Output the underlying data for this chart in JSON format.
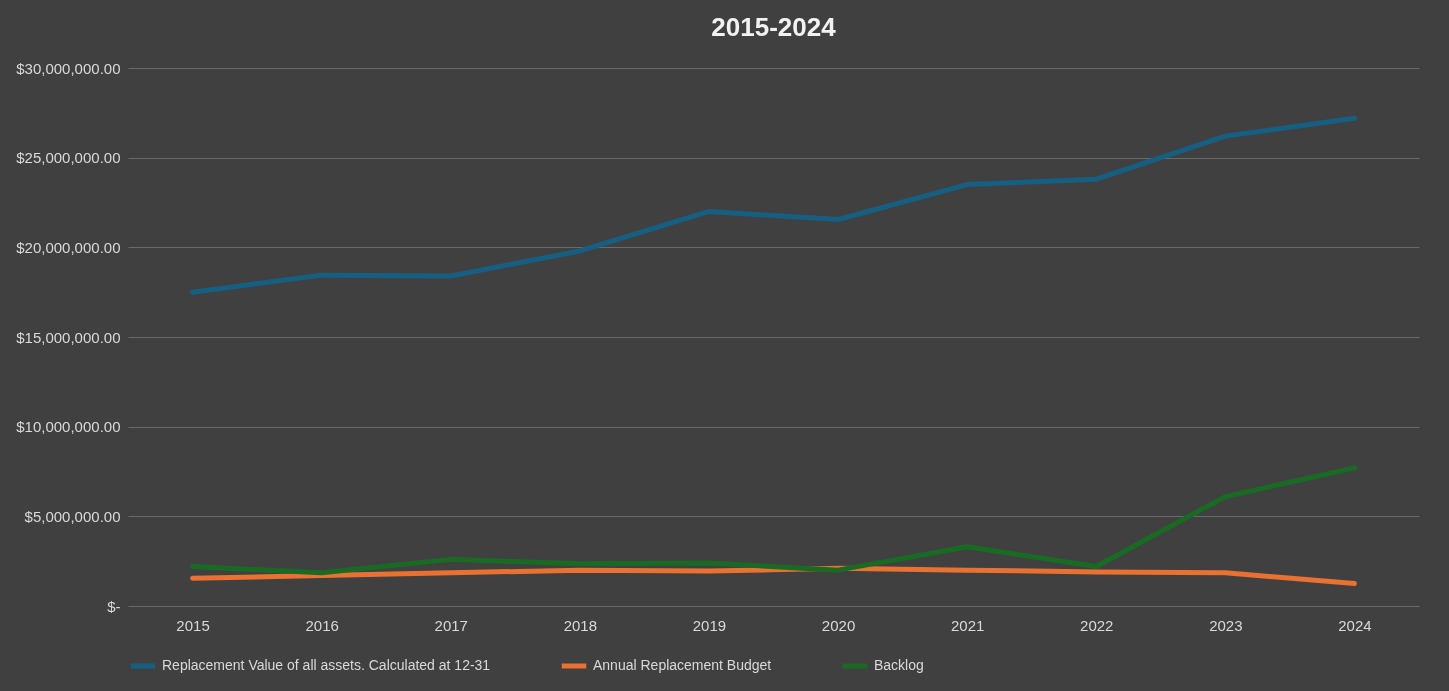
{
  "chart_data": {
    "type": "line",
    "title": "2015-2024",
    "categories": [
      "2015",
      "2016",
      "2017",
      "2018",
      "2019",
      "2020",
      "2021",
      "2022",
      "2023",
      "2024"
    ],
    "series": [
      {
        "name": "Replacement Value of all assets. Calculated at 12-31",
        "color": "#156082",
        "values": [
          17500000,
          18450000,
          18400000,
          19800000,
          22000000,
          21550000,
          23500000,
          23800000,
          26200000,
          27200000
        ]
      },
      {
        "name": "Annual Replacement Budget",
        "color": "#e97132",
        "values": [
          1550000,
          1700000,
          1850000,
          2000000,
          1950000,
          2100000,
          2000000,
          1900000,
          1850000,
          1250000
        ]
      },
      {
        "name": "Backlog",
        "color": "#196b24",
        "values": [
          2200000,
          1850000,
          2600000,
          2350000,
          2400000,
          2000000,
          3300000,
          2200000,
          6100000,
          7700000
        ]
      }
    ],
    "ylim": [
      0,
      30000000
    ],
    "yticks": [
      {
        "value": 0,
        "label": "$-"
      },
      {
        "value": 5000000,
        "label": "$5,000,000.00"
      },
      {
        "value": 10000000,
        "label": "$10,000,000.00"
      },
      {
        "value": 15000000,
        "label": "$15,000,000.00"
      },
      {
        "value": 20000000,
        "label": "$20,000,000.00"
      },
      {
        "value": 25000000,
        "label": "$25,000,000.00"
      },
      {
        "value": 30000000,
        "label": "$30,000,000.00"
      }
    ],
    "grid": "y",
    "legend": "bottom",
    "marker": "none",
    "line_style": "solid"
  }
}
